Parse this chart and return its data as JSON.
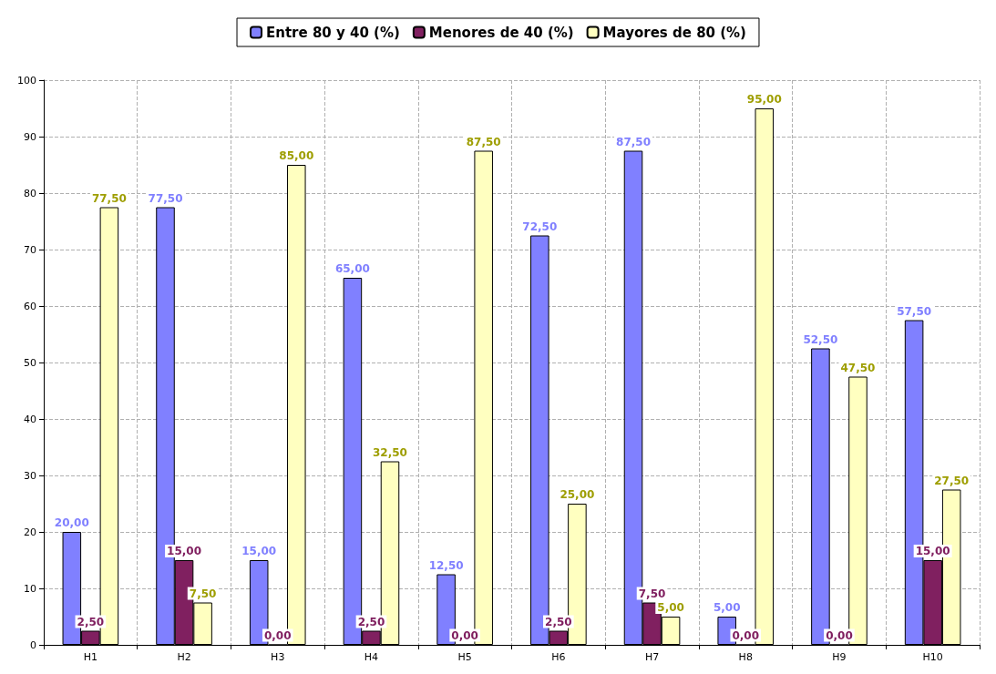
{
  "chart_data": {
    "type": "bar",
    "categories": [
      "H1",
      "H2",
      "H3",
      "H4",
      "H5",
      "H6",
      "H7",
      "H8",
      "H9",
      "H10"
    ],
    "series": [
      {
        "name": "Entre 80 y 40 (%)",
        "color": "#8080ff",
        "values": [
          20,
          77.5,
          15,
          65,
          12.5,
          72.5,
          87.5,
          5,
          52.5,
          57.5
        ],
        "value_labels": [
          "20,00",
          "77,50",
          "15,00",
          "65,00",
          "12,50",
          "72,50",
          "87,50",
          "5,00",
          "52,50",
          "57,50"
        ]
      },
      {
        "name": "Menores de 40 (%)",
        "color": "#802060",
        "values": [
          2.5,
          15,
          0,
          2.5,
          0,
          2.5,
          7.5,
          0,
          0,
          15
        ],
        "value_labels": [
          "2,50",
          "15,00",
          "0,00",
          "2,50",
          "0,00",
          "2,50",
          "7,50",
          "0,00",
          "0,00",
          "15,00"
        ]
      },
      {
        "name": "Mayores de 80 (%)",
        "color": "#ffffc0",
        "values": [
          77.5,
          7.5,
          85,
          32.5,
          87.5,
          25,
          5,
          95,
          47.5,
          27.5
        ],
        "value_labels": [
          "77,50",
          "7,50",
          "85,00",
          "32,50",
          "87,50",
          "25,00",
          "5,00",
          "95,00",
          "47,50",
          "27,50"
        ]
      }
    ],
    "ylim": [
      0,
      100
    ],
    "yticks": [
      0,
      10,
      20,
      30,
      40,
      50,
      60,
      70,
      80,
      90,
      100
    ],
    "grid": true,
    "legend": "top"
  }
}
